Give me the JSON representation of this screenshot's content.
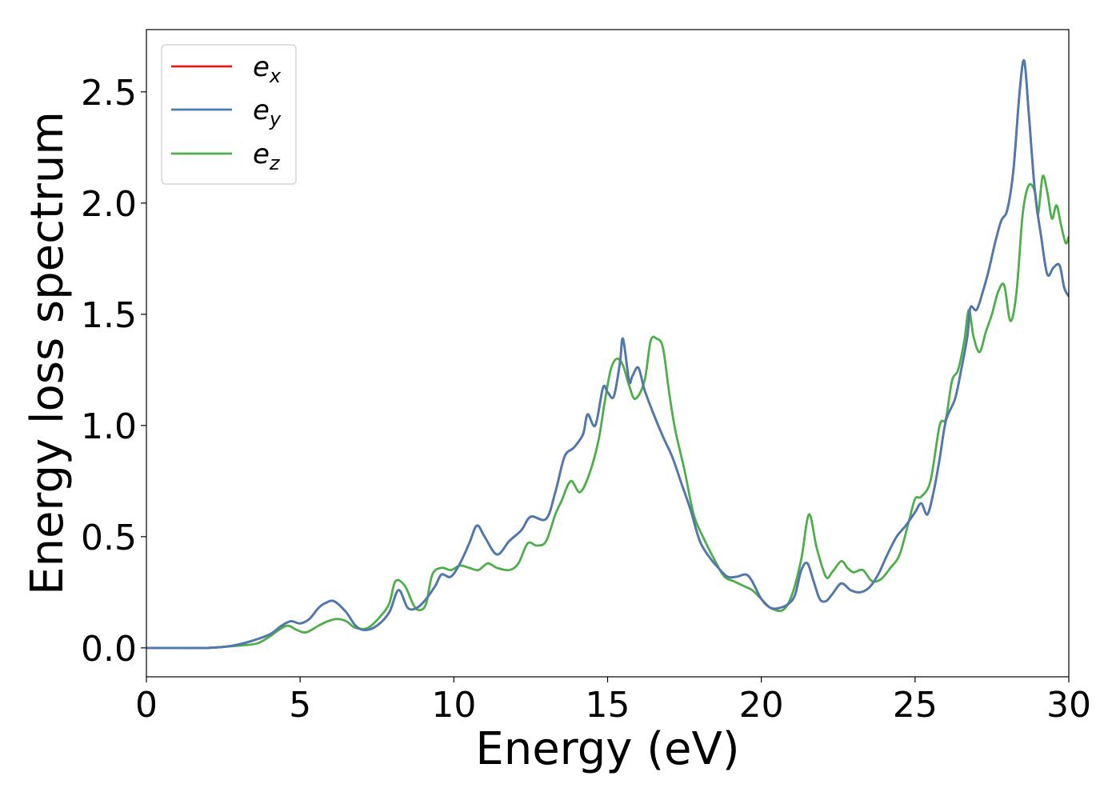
{
  "chart_data": {
    "type": "line",
    "title": "",
    "xlabel": "Energy (eV)",
    "ylabel": "Energy loss spectrum",
    "xlim": [
      0,
      30
    ],
    "ylim": [
      -0.13,
      2.78
    ],
    "xticks": [
      0,
      5,
      10,
      15,
      20,
      25,
      30
    ],
    "xtick_labels": [
      "0",
      "5",
      "10",
      "15",
      "20",
      "25",
      "30"
    ],
    "yticks": [
      0.0,
      0.5,
      1.0,
      1.5,
      2.0,
      2.5
    ],
    "ytick_labels": [
      "0.0",
      "0.5",
      "1.0",
      "1.5",
      "2.0",
      "2.5"
    ],
    "grid": false,
    "legend_position": "top-left",
    "series": [
      {
        "name": "e_x",
        "label_base": "e",
        "label_sub": "x",
        "color": "#e41a1c",
        "x": [
          0,
          1,
          2,
          2.8,
          3.4,
          4.0,
          4.4,
          4.7,
          5.0,
          5.3,
          5.6,
          5.8,
          6.1,
          6.5,
          6.8,
          7.1,
          7.5,
          7.9,
          8.2,
          8.5,
          8.8,
          9.1,
          9.4,
          9.6,
          9.9,
          10.2,
          10.5,
          10.75,
          11.0,
          11.4,
          11.8,
          12.2,
          12.5,
          13.0,
          13.3,
          13.6,
          13.9,
          14.2,
          14.35,
          14.6,
          14.85,
          15.0,
          15.2,
          15.4,
          15.5,
          15.7,
          15.8,
          16.0,
          16.2,
          16.5,
          16.8,
          17.1,
          17.4,
          17.7,
          18.0,
          18.3,
          18.6,
          18.9,
          19.2,
          19.5,
          19.7,
          20.0,
          20.3,
          20.6,
          20.9,
          21.1,
          21.3,
          21.5,
          21.7,
          21.9,
          22.1,
          22.3,
          22.6,
          22.9,
          23.2,
          23.5,
          23.8,
          24.1,
          24.4,
          24.7,
          25.0,
          25.2,
          25.4,
          25.6,
          25.8,
          26.0,
          26.3,
          26.5,
          26.7,
          26.8,
          27.0,
          27.2,
          27.4,
          27.6,
          27.8,
          28.0,
          28.2,
          28.4,
          28.55,
          28.7,
          28.9,
          29.1,
          29.3,
          29.5,
          29.7,
          29.85,
          30.0
        ],
        "y": [
          0.0,
          0.0,
          0.0,
          0.01,
          0.03,
          0.06,
          0.1,
          0.12,
          0.11,
          0.13,
          0.18,
          0.2,
          0.21,
          0.16,
          0.1,
          0.08,
          0.1,
          0.16,
          0.26,
          0.18,
          0.18,
          0.22,
          0.28,
          0.33,
          0.32,
          0.38,
          0.47,
          0.55,
          0.5,
          0.42,
          0.48,
          0.53,
          0.59,
          0.58,
          0.7,
          0.86,
          0.9,
          0.96,
          1.05,
          1.0,
          1.17,
          1.15,
          1.13,
          1.28,
          1.39,
          1.2,
          1.22,
          1.26,
          1.16,
          1.05,
          0.95,
          0.86,
          0.74,
          0.62,
          0.48,
          0.41,
          0.36,
          0.32,
          0.32,
          0.33,
          0.3,
          0.22,
          0.18,
          0.18,
          0.2,
          0.24,
          0.35,
          0.38,
          0.3,
          0.22,
          0.21,
          0.24,
          0.29,
          0.26,
          0.25,
          0.27,
          0.33,
          0.42,
          0.5,
          0.55,
          0.61,
          0.65,
          0.6,
          0.7,
          0.85,
          1.02,
          1.12,
          1.25,
          1.4,
          1.53,
          1.52,
          1.6,
          1.7,
          1.82,
          1.92,
          1.97,
          2.15,
          2.5,
          2.64,
          2.4,
          2.05,
          1.85,
          1.68,
          1.71,
          1.72,
          1.62,
          1.58
        ]
      },
      {
        "name": "e_y",
        "label_base": "e",
        "label_sub": "y",
        "color": "#4a7cb3",
        "x": [
          0,
          1,
          2,
          2.8,
          3.4,
          4.0,
          4.4,
          4.7,
          5.0,
          5.3,
          5.6,
          5.8,
          6.1,
          6.5,
          6.8,
          7.1,
          7.5,
          7.9,
          8.2,
          8.5,
          8.8,
          9.1,
          9.4,
          9.6,
          9.9,
          10.2,
          10.5,
          10.75,
          11.0,
          11.4,
          11.8,
          12.2,
          12.5,
          13.0,
          13.3,
          13.6,
          13.9,
          14.2,
          14.35,
          14.6,
          14.85,
          15.0,
          15.2,
          15.4,
          15.5,
          15.7,
          15.8,
          16.0,
          16.2,
          16.5,
          16.8,
          17.1,
          17.4,
          17.7,
          18.0,
          18.3,
          18.6,
          18.9,
          19.2,
          19.5,
          19.7,
          20.0,
          20.3,
          20.6,
          20.9,
          21.1,
          21.3,
          21.5,
          21.7,
          21.9,
          22.1,
          22.3,
          22.6,
          22.9,
          23.2,
          23.5,
          23.8,
          24.1,
          24.4,
          24.7,
          25.0,
          25.2,
          25.4,
          25.6,
          25.8,
          26.0,
          26.3,
          26.5,
          26.7,
          26.8,
          27.0,
          27.2,
          27.4,
          27.6,
          27.8,
          28.0,
          28.2,
          28.4,
          28.55,
          28.7,
          28.9,
          29.1,
          29.3,
          29.5,
          29.7,
          29.85,
          30.0
        ],
        "y": [
          0.0,
          0.0,
          0.0,
          0.01,
          0.03,
          0.06,
          0.1,
          0.12,
          0.11,
          0.13,
          0.18,
          0.2,
          0.21,
          0.16,
          0.1,
          0.08,
          0.1,
          0.16,
          0.26,
          0.18,
          0.18,
          0.22,
          0.28,
          0.33,
          0.32,
          0.38,
          0.47,
          0.55,
          0.5,
          0.42,
          0.48,
          0.53,
          0.59,
          0.58,
          0.7,
          0.86,
          0.9,
          0.96,
          1.05,
          1.0,
          1.17,
          1.15,
          1.13,
          1.28,
          1.39,
          1.2,
          1.22,
          1.26,
          1.16,
          1.05,
          0.95,
          0.86,
          0.74,
          0.62,
          0.48,
          0.41,
          0.36,
          0.32,
          0.32,
          0.33,
          0.3,
          0.22,
          0.18,
          0.18,
          0.2,
          0.24,
          0.35,
          0.38,
          0.3,
          0.22,
          0.21,
          0.24,
          0.29,
          0.26,
          0.25,
          0.27,
          0.33,
          0.42,
          0.5,
          0.55,
          0.61,
          0.65,
          0.6,
          0.7,
          0.85,
          1.02,
          1.12,
          1.25,
          1.4,
          1.53,
          1.52,
          1.6,
          1.7,
          1.82,
          1.92,
          1.97,
          2.15,
          2.5,
          2.64,
          2.4,
          2.05,
          1.85,
          1.68,
          1.71,
          1.72,
          1.62,
          1.58
        ]
      },
      {
        "name": "e_z",
        "label_base": "e",
        "label_sub": "z",
        "color": "#4daf4a",
        "x": [
          0,
          1,
          2,
          3.0,
          3.6,
          4.0,
          4.3,
          4.6,
          4.9,
          5.2,
          5.6,
          5.9,
          6.2,
          6.5,
          6.8,
          7.2,
          7.6,
          7.9,
          8.1,
          8.4,
          8.7,
          8.9,
          9.1,
          9.3,
          9.6,
          9.9,
          10.2,
          10.5,
          10.8,
          11.1,
          11.4,
          11.8,
          12.1,
          12.4,
          12.7,
          13.0,
          13.3,
          13.5,
          13.8,
          14.1,
          14.4,
          14.7,
          14.9,
          15.1,
          15.3,
          15.5,
          15.7,
          15.9,
          16.2,
          16.4,
          16.6,
          16.8,
          17.0,
          17.2,
          17.5,
          17.8,
          18.1,
          18.5,
          18.8,
          19.1,
          19.4,
          19.7,
          20.0,
          20.3,
          20.7,
          21.0,
          21.3,
          21.55,
          21.8,
          22.1,
          22.3,
          22.6,
          22.8,
          23.0,
          23.3,
          23.6,
          23.9,
          24.2,
          24.5,
          24.8,
          25.0,
          25.2,
          25.5,
          25.8,
          26.0,
          26.2,
          26.4,
          26.6,
          26.75,
          26.9,
          27.1,
          27.3,
          27.5,
          27.7,
          27.9,
          28.1,
          28.3,
          28.5,
          28.7,
          28.9,
          29.0,
          29.15,
          29.3,
          29.45,
          29.6,
          29.75,
          29.9,
          30.0
        ],
        "y": [
          0.0,
          0.0,
          0.0,
          0.01,
          0.02,
          0.05,
          0.08,
          0.1,
          0.08,
          0.07,
          0.1,
          0.12,
          0.13,
          0.12,
          0.09,
          0.09,
          0.14,
          0.2,
          0.3,
          0.28,
          0.19,
          0.17,
          0.2,
          0.33,
          0.36,
          0.35,
          0.37,
          0.36,
          0.35,
          0.38,
          0.36,
          0.35,
          0.38,
          0.47,
          0.46,
          0.48,
          0.6,
          0.66,
          0.75,
          0.7,
          0.78,
          0.93,
          1.1,
          1.25,
          1.3,
          1.27,
          1.18,
          1.12,
          1.2,
          1.38,
          1.39,
          1.35,
          1.15,
          0.98,
          0.8,
          0.6,
          0.5,
          0.39,
          0.32,
          0.3,
          0.28,
          0.26,
          0.22,
          0.18,
          0.17,
          0.24,
          0.4,
          0.6,
          0.45,
          0.32,
          0.34,
          0.39,
          0.36,
          0.34,
          0.35,
          0.3,
          0.31,
          0.36,
          0.42,
          0.57,
          0.67,
          0.68,
          0.75,
          1.0,
          1.03,
          1.2,
          1.25,
          1.38,
          1.52,
          1.4,
          1.33,
          1.42,
          1.5,
          1.6,
          1.63,
          1.47,
          1.6,
          1.95,
          2.08,
          2.05,
          1.95,
          2.12,
          2.05,
          1.93,
          1.99,
          1.9,
          1.82,
          1.85
        ]
      }
    ]
  }
}
